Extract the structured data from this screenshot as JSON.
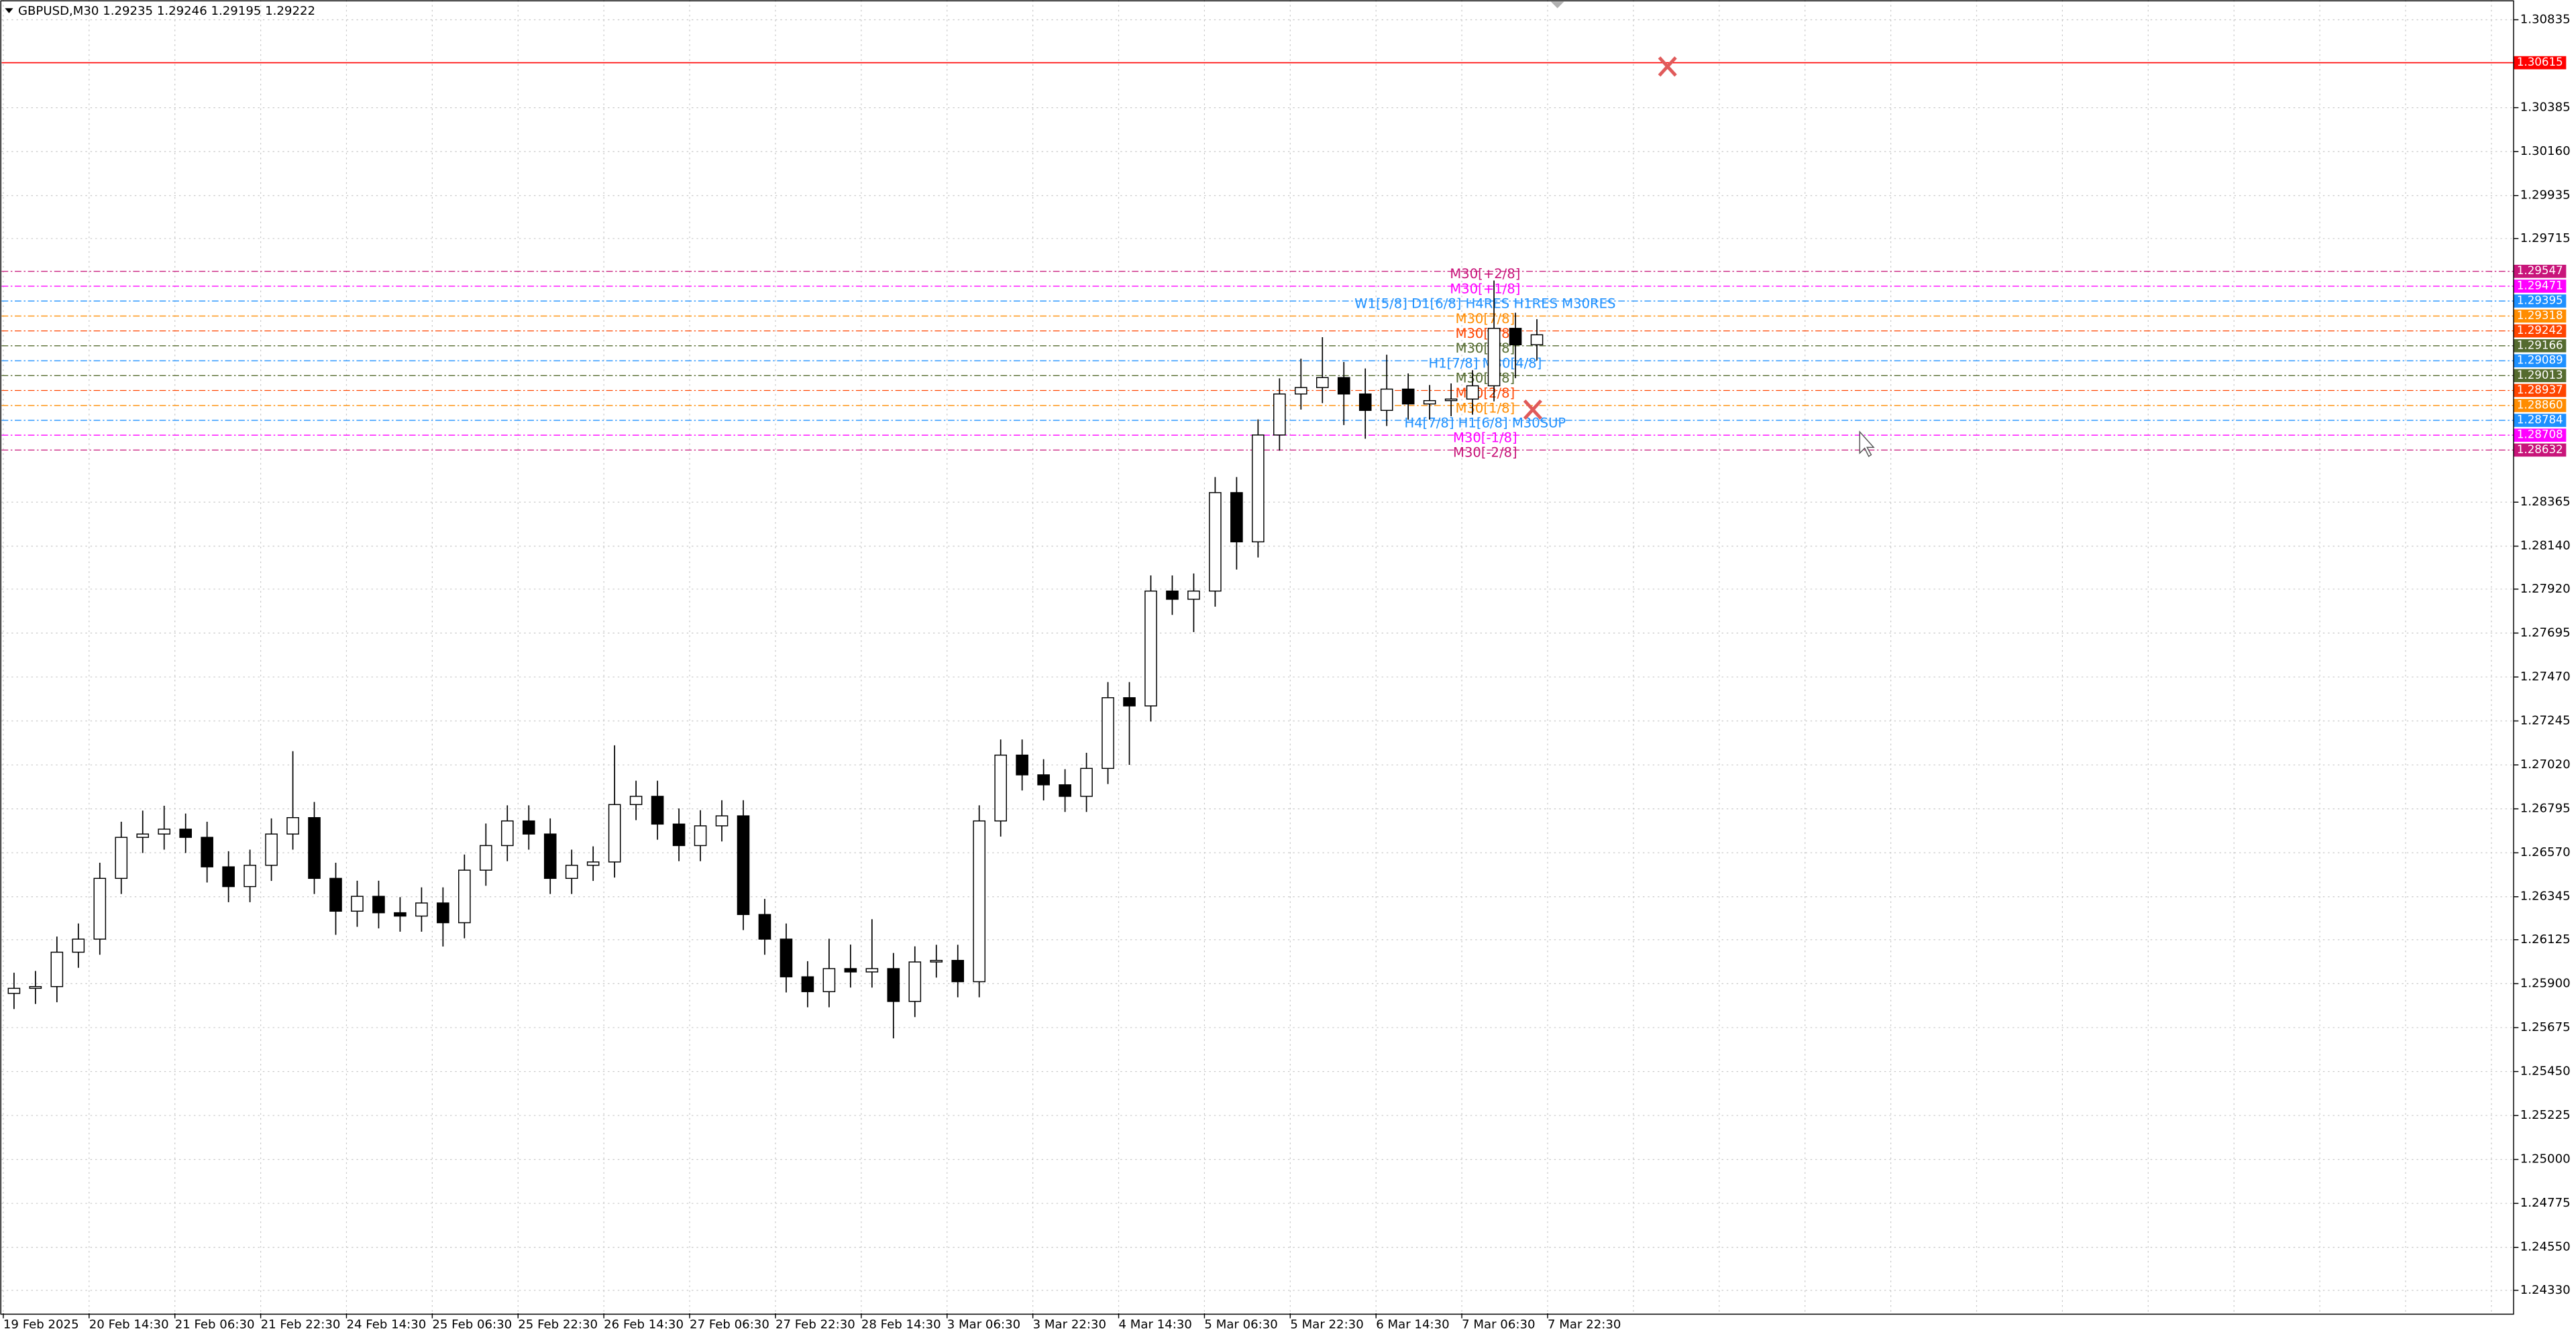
{
  "chart_data": {
    "type": "candlestick",
    "title": "GBPUSD,M30  1.29235 1.29246 1.29195 1.29222",
    "x_labels": [
      "19 Feb 2025",
      "20 Feb 14:30",
      "21 Feb 06:30",
      "21 Feb 22:30",
      "24 Feb 14:30",
      "25 Feb 06:30",
      "25 Feb 22:30",
      "26 Feb 14:30",
      "27 Feb 06:30",
      "27 Feb 22:30",
      "28 Feb 14:30",
      "3 Mar 06:30",
      "3 Mar 22:30",
      "4 Mar 14:30",
      "5 Mar 06:30",
      "5 Mar 22:30",
      "6 Mar 14:30",
      "7 Mar 06:30",
      "7 Mar 22:30"
    ],
    "open": [
      1.2585,
      1.25876,
      1.25885,
      1.26061,
      1.26128,
      1.26439,
      1.26649,
      1.26666,
      1.26691,
      1.26649,
      1.26498,
      1.26397,
      1.26506,
      1.26666,
      1.2675,
      1.26439,
      1.26271,
      1.26347,
      1.26263,
      1.26246,
      1.26313,
      1.26212,
      1.26481,
      1.26607,
      1.26733,
      1.26666,
      1.26439,
      1.26506,
      1.26523,
      1.26817,
      1.26859,
      1.26717,
      1.26607,
      1.26708,
      1.26759,
      1.26254,
      1.26128,
      1.25935,
      1.25859,
      1.25977,
      1.2596,
      1.25977,
      1.25809,
      1.26011,
      1.26019,
      1.2591,
      1.26733,
      1.2707,
      1.26969,
      1.26918,
      1.26859,
      1.27002,
      1.27364,
      1.27322,
      1.2791,
      1.27868,
      1.2791,
      1.28414,
      1.28162,
      1.28709,
      1.28919,
      1.28952,
      1.29003,
      1.28919,
      1.28835,
      1.28944,
      1.28868,
      1.28885,
      1.28893,
      1.28961,
      1.29255,
      1.29171
    ],
    "high": [
      1.25956,
      1.25965,
      1.26141,
      1.26208,
      1.26519,
      1.26729,
      1.26786,
      1.26811,
      1.26771,
      1.26729,
      1.26578,
      1.26586,
      1.26746,
      1.2709,
      1.2683,
      1.26519,
      1.26427,
      1.26427,
      1.26343,
      1.26393,
      1.26393,
      1.26561,
      1.2672,
      1.26813,
      1.26813,
      1.26746,
      1.26586,
      1.26603,
      1.2712,
      1.26939,
      1.26939,
      1.26797,
      1.26788,
      1.26839,
      1.26839,
      1.26334,
      1.26208,
      1.26015,
      1.2613,
      1.261,
      1.2623,
      1.26057,
      1.26091,
      1.26099,
      1.26099,
      1.26813,
      1.2715,
      1.2715,
      1.27049,
      1.26998,
      1.27082,
      1.27444,
      1.27444,
      1.2799,
      1.2799,
      1.28,
      1.28494,
      1.28494,
      1.28789,
      1.28999,
      1.291,
      1.2921,
      1.29083,
      1.2905,
      1.2912,
      1.29024,
      1.28965,
      1.28973,
      1.29041,
      1.295,
      1.29335,
      1.29302
    ],
    "low": [
      1.2577,
      1.25796,
      1.25805,
      1.25981,
      1.26048,
      1.26359,
      1.26569,
      1.26586,
      1.26569,
      1.26418,
      1.26317,
      1.26317,
      1.26426,
      1.26586,
      1.26359,
      1.2615,
      1.26191,
      1.26183,
      1.26166,
      1.26166,
      1.2609,
      1.26132,
      1.26401,
      1.26527,
      1.26586,
      1.26359,
      1.26359,
      1.26426,
      1.26443,
      1.26737,
      1.26637,
      1.26527,
      1.26527,
      1.26628,
      1.26174,
      1.26048,
      1.25855,
      1.25779,
      1.25779,
      1.2588,
      1.2588,
      1.2562,
      1.25729,
      1.25931,
      1.2583,
      1.2583,
      1.26653,
      1.26889,
      1.26838,
      1.26779,
      1.26779,
      1.26922,
      1.2702,
      1.27242,
      1.27788,
      1.277,
      1.2783,
      1.2802,
      1.28082,
      1.28629,
      1.28839,
      1.28872,
      1.2876,
      1.2869,
      1.28755,
      1.28788,
      1.28788,
      1.28805,
      1.28813,
      1.28881,
      1.29,
      1.29091
    ],
    "close": [
      1.25876,
      1.25885,
      1.26061,
      1.26128,
      1.26439,
      1.26649,
      1.26666,
      1.26691,
      1.26649,
      1.26498,
      1.26397,
      1.26506,
      1.26666,
      1.2675,
      1.26439,
      1.26271,
      1.26347,
      1.26263,
      1.26246,
      1.26313,
      1.26212,
      1.26481,
      1.26607,
      1.26733,
      1.26666,
      1.26439,
      1.26506,
      1.26523,
      1.26817,
      1.26859,
      1.26717,
      1.26607,
      1.26708,
      1.26759,
      1.26254,
      1.26128,
      1.25935,
      1.25859,
      1.25977,
      1.2596,
      1.25977,
      1.25809,
      1.26011,
      1.26019,
      1.2591,
      1.26733,
      1.2707,
      1.26969,
      1.26918,
      1.26859,
      1.27002,
      1.27364,
      1.27322,
      1.2791,
      1.27868,
      1.2791,
      1.28414,
      1.28162,
      1.28709,
      1.28919,
      1.28952,
      1.29003,
      1.28919,
      1.28835,
      1.28944,
      1.28868,
      1.28885,
      1.28893,
      1.28961,
      1.29255,
      1.29171,
      1.29222
    ],
    "up_color": "#ffffff",
    "down_color": "#000000",
    "ylim": [
      1.24212,
      1.30936
    ],
    "yticks": [
      1.30835,
      1.30385,
      {
        "value": 1.3016,
        "label": "1.30160"
      },
      1.29935,
      1.29715,
      1.28365,
      {
        "value": 1.2814,
        "label": "1.28140"
      },
      {
        "value": 1.2792,
        "label": "1.27920"
      },
      1.27695,
      {
        "value": 1.2747,
        "label": "1.27470"
      },
      1.27245,
      {
        "value": 1.2702,
        "label": "1.27020"
      },
      1.26795,
      {
        "value": 1.2657,
        "label": "1.26570"
      },
      1.26345,
      1.26125,
      {
        "value": 1.259,
        "label": "1.25900"
      },
      1.25675,
      {
        "value": 1.2545,
        "label": "1.25450"
      },
      1.25225,
      {
        "value": 1.25,
        "label": "1.25000"
      },
      1.24775,
      {
        "value": 1.2455,
        "label": "1.24550"
      },
      {
        "value": 1.2433,
        "label": "1.24330"
      }
    ],
    "grid": true,
    "levels": {
      "values": [
        1.30615,
        1.29547,
        1.29471,
        1.29395,
        1.29318,
        1.29242,
        1.29166,
        1.29089,
        1.29013,
        1.28937,
        1.2886,
        1.28784,
        1.28708,
        1.28632
      ],
      "value_labels": [
        "1.30615",
        "1.29547",
        "1.29471",
        "1.29395",
        "1.29318",
        "1.29242",
        "1.29166",
        "1.29089",
        "1.29013",
        "1.28937",
        "1.28860",
        "1.28784",
        "1.28708",
        "1.28632"
      ],
      "colors": [
        "#ff0000",
        "#c8157a",
        "#ff00ff",
        "#1e90ff",
        "#ff8c00",
        "#ff4500",
        "#556b2f",
        "#1e90ff",
        "#556b2f",
        "#ff4500",
        "#ff8c00",
        "#1e90ff",
        "#ff00ff",
        "#c8157a"
      ],
      "notes": [
        null,
        "M30[+2/8]",
        "M30[+1/8]",
        "W1[5/8] D1[6/8] H4RES H1RES M30RES",
        "M30[7/8]",
        "M30[6/8]",
        "M30[5/8]",
        "H1[7/8] M30[4/8]",
        "M30[3/8]",
        "M30[2/8]",
        "M30[1/8]",
        "H4[7/8] H1[6/8] M30SUP",
        "M30[-1/8]",
        "M30[-2/8]"
      ]
    }
  }
}
